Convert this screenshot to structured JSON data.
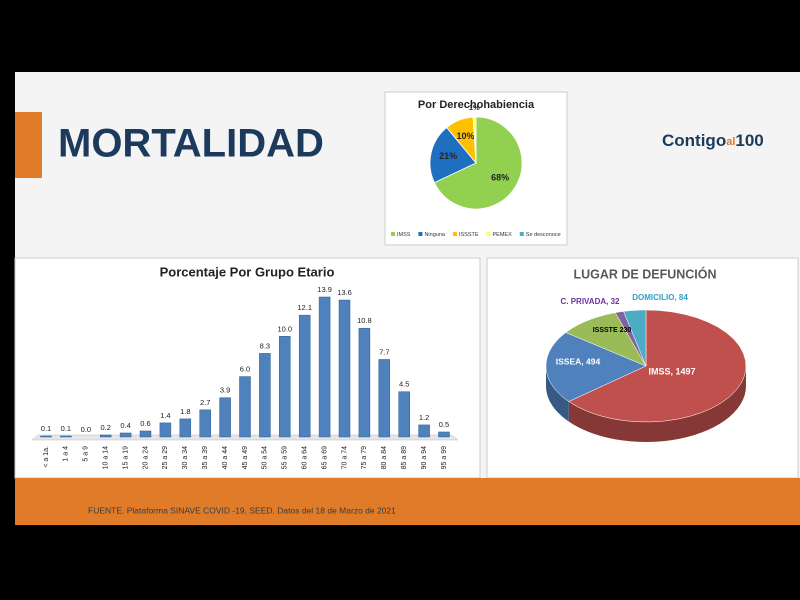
{
  "title": "MORTALIDAD",
  "logo": [
    "Contigo",
    "al",
    "100"
  ],
  "footer": "FUENTE. Plataforma SINAVE COVID -19, SEED. Datos del 18 de Marzo de 2021",
  "chart_data": [
    {
      "type": "pie",
      "title": "Por Derechohabiencia",
      "categories": [
        "IMSS",
        "Ninguna",
        "ISSSTE",
        "PEMEX",
        "Se desconoce"
      ],
      "values": [
        68,
        21,
        10,
        1,
        0
      ],
      "value_labels": [
        "68%",
        "21%",
        "10%",
        "1%",
        null
      ],
      "colors": [
        "#92d050",
        "#1f6fc1",
        "#ffc000",
        "#ffff66",
        "#4bacc6"
      ],
      "legend": "bottom"
    },
    {
      "type": "bar",
      "title": "Porcentaje Por Grupo Etario",
      "categories": [
        "< a 1a.",
        "1 a 4",
        "5 a 9",
        "10 a 14",
        "15 a 19",
        "20 a 24",
        "25 a 29",
        "30 a 34",
        "35 a 39",
        "40 a 44",
        "45 a 49",
        "50 a 54",
        "55 a 59",
        "60 a 64",
        "65 a 69",
        "70 a 74",
        "75 a 79",
        "80 a 84",
        "85 a 89",
        "90 a 94",
        "95 a 99"
      ],
      "values": [
        0.1,
        0.1,
        0.0,
        0.2,
        0.4,
        0.6,
        1.4,
        1.8,
        2.7,
        3.9,
        6.0,
        8.3,
        10.0,
        12.1,
        13.9,
        13.6,
        10.8,
        7.7,
        4.5,
        1.2,
        0.5
      ],
      "value_labels": [
        "0.1",
        "0.1",
        "0.0",
        "0.2",
        "0.4",
        "0.6",
        "1.4",
        "1.8",
        "2.7",
        "3.9",
        "6.0",
        "8.3",
        "10.0",
        "12.1",
        "13.9",
        "13.6",
        "10.8",
        "7.7",
        "4.5",
        "1.2",
        "0.5"
      ],
      "color": "#4f81bd"
    },
    {
      "type": "pie3d",
      "title": "LUGAR DE DEFUNCIÓN",
      "values": [
        1497,
        494,
        230,
        32,
        84
      ],
      "value_labels": [
        "IMSS, 1497",
        "ISSEA, 494",
        "ISSSTE 230",
        "C. PRIVADA, 32",
        "DOMICILIO, 84"
      ],
      "colors": [
        "#c0504d",
        "#4f81bd",
        "#9bbb59",
        "#8064a2",
        "#4bacc6"
      ]
    }
  ]
}
